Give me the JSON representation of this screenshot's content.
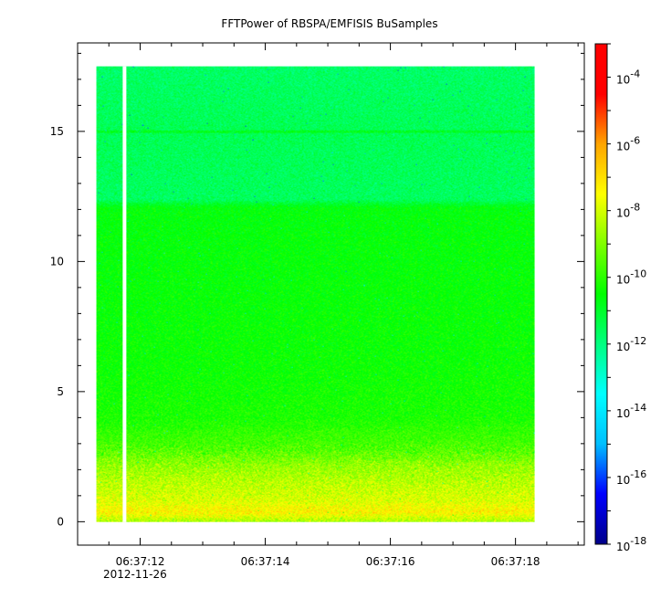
{
  "chart_data": {
    "type": "heatmap",
    "title": "FFTPower of RBSPA/EMFISIS  BuSamples",
    "date_label": "2012-11-26",
    "x_ticks": [
      "06:37:12",
      "06:37:14",
      "06:37:16",
      "06:37:18"
    ],
    "x_tick_values_sec": [
      12,
      14,
      16,
      18
    ],
    "x_data_range_sec": [
      11.3,
      18.3
    ],
    "x_axis_range_sec": [
      11.0,
      19.1
    ],
    "y_ticks": [
      "0",
      "5",
      "10",
      "15"
    ],
    "y_tick_values": [
      0,
      5,
      10,
      15
    ],
    "ylim": [
      -0.9,
      18.4
    ],
    "y_data_range": [
      0,
      17.5
    ],
    "gap": {
      "x_sec": 11.75
    },
    "colorbar": {
      "scale": "log",
      "range": [
        1e-18,
        0.001
      ],
      "tick_labels": [
        {
          "base": "10",
          "exp": "-4"
        },
        {
          "base": "10",
          "exp": "-6"
        },
        {
          "base": "10",
          "exp": "-8"
        },
        {
          "base": "10",
          "exp": "-10"
        },
        {
          "base": "10",
          "exp": "-12"
        },
        {
          "base": "10",
          "exp": "-14"
        },
        {
          "base": "10",
          "exp": "-16"
        },
        {
          "base": "10",
          "exp": "-18"
        }
      ],
      "tick_values_log10": [
        -4,
        -6,
        -8,
        -10,
        -12,
        -14,
        -16,
        -18
      ]
    },
    "power_profile_log10": [
      {
        "freq": 0.0,
        "log10_power": -8.6
      },
      {
        "freq": 0.4,
        "log10_power": -7.3
      },
      {
        "freq": 0.8,
        "log10_power": -7.9
      },
      {
        "freq": 1.5,
        "log10_power": -8.3
      },
      {
        "freq": 2.2,
        "log10_power": -8.8
      },
      {
        "freq": 2.8,
        "log10_power": -9.6
      },
      {
        "freq": 4.0,
        "log10_power": -10.2
      },
      {
        "freq": 6.0,
        "log10_power": -10.4
      },
      {
        "freq": 9.0,
        "log10_power": -10.5
      },
      {
        "freq": 12.1,
        "log10_power": -10.6
      },
      {
        "freq": 12.4,
        "log10_power": -11.6
      },
      {
        "freq": 15.0,
        "log10_power": -11.5
      },
      {
        "freq": 17.5,
        "log10_power": -11.7
      }
    ],
    "line_feature": {
      "freq": 15.0
    },
    "colormap": [
      "#00008b",
      "#0000ff",
      "#00bfff",
      "#00ffff",
      "#00ff80",
      "#00ff00",
      "#80ff00",
      "#ffff00",
      "#ffa500",
      "#ff0000",
      "#ff0000"
    ]
  }
}
